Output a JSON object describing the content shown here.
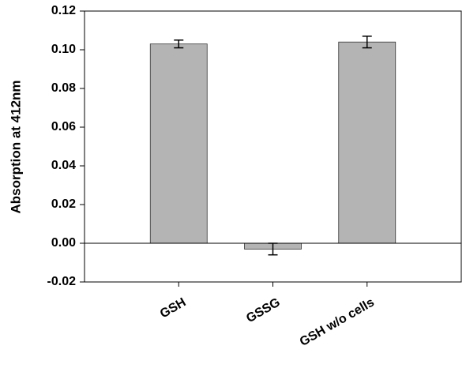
{
  "chart_data": {
    "type": "bar",
    "y_label": "Absorption at 412nm",
    "categories": [
      "GSH",
      "GSSG",
      "GSH w/o cells"
    ],
    "values": [
      0.103,
      -0.003,
      0.104
    ],
    "errors": [
      0.002,
      0.003,
      0.003
    ],
    "color": "#b4b4b4",
    "ylim": [
      -0.02,
      0.12
    ],
    "yticks": [
      -0.02,
      {
        "value": 0,
        "label": "0.00"
      },
      0.02,
      0.04,
      0.06,
      0.08,
      {
        "value": 0.1,
        "label": "0.10"
      },
      0.12
    ],
    "zero_line": true
  }
}
